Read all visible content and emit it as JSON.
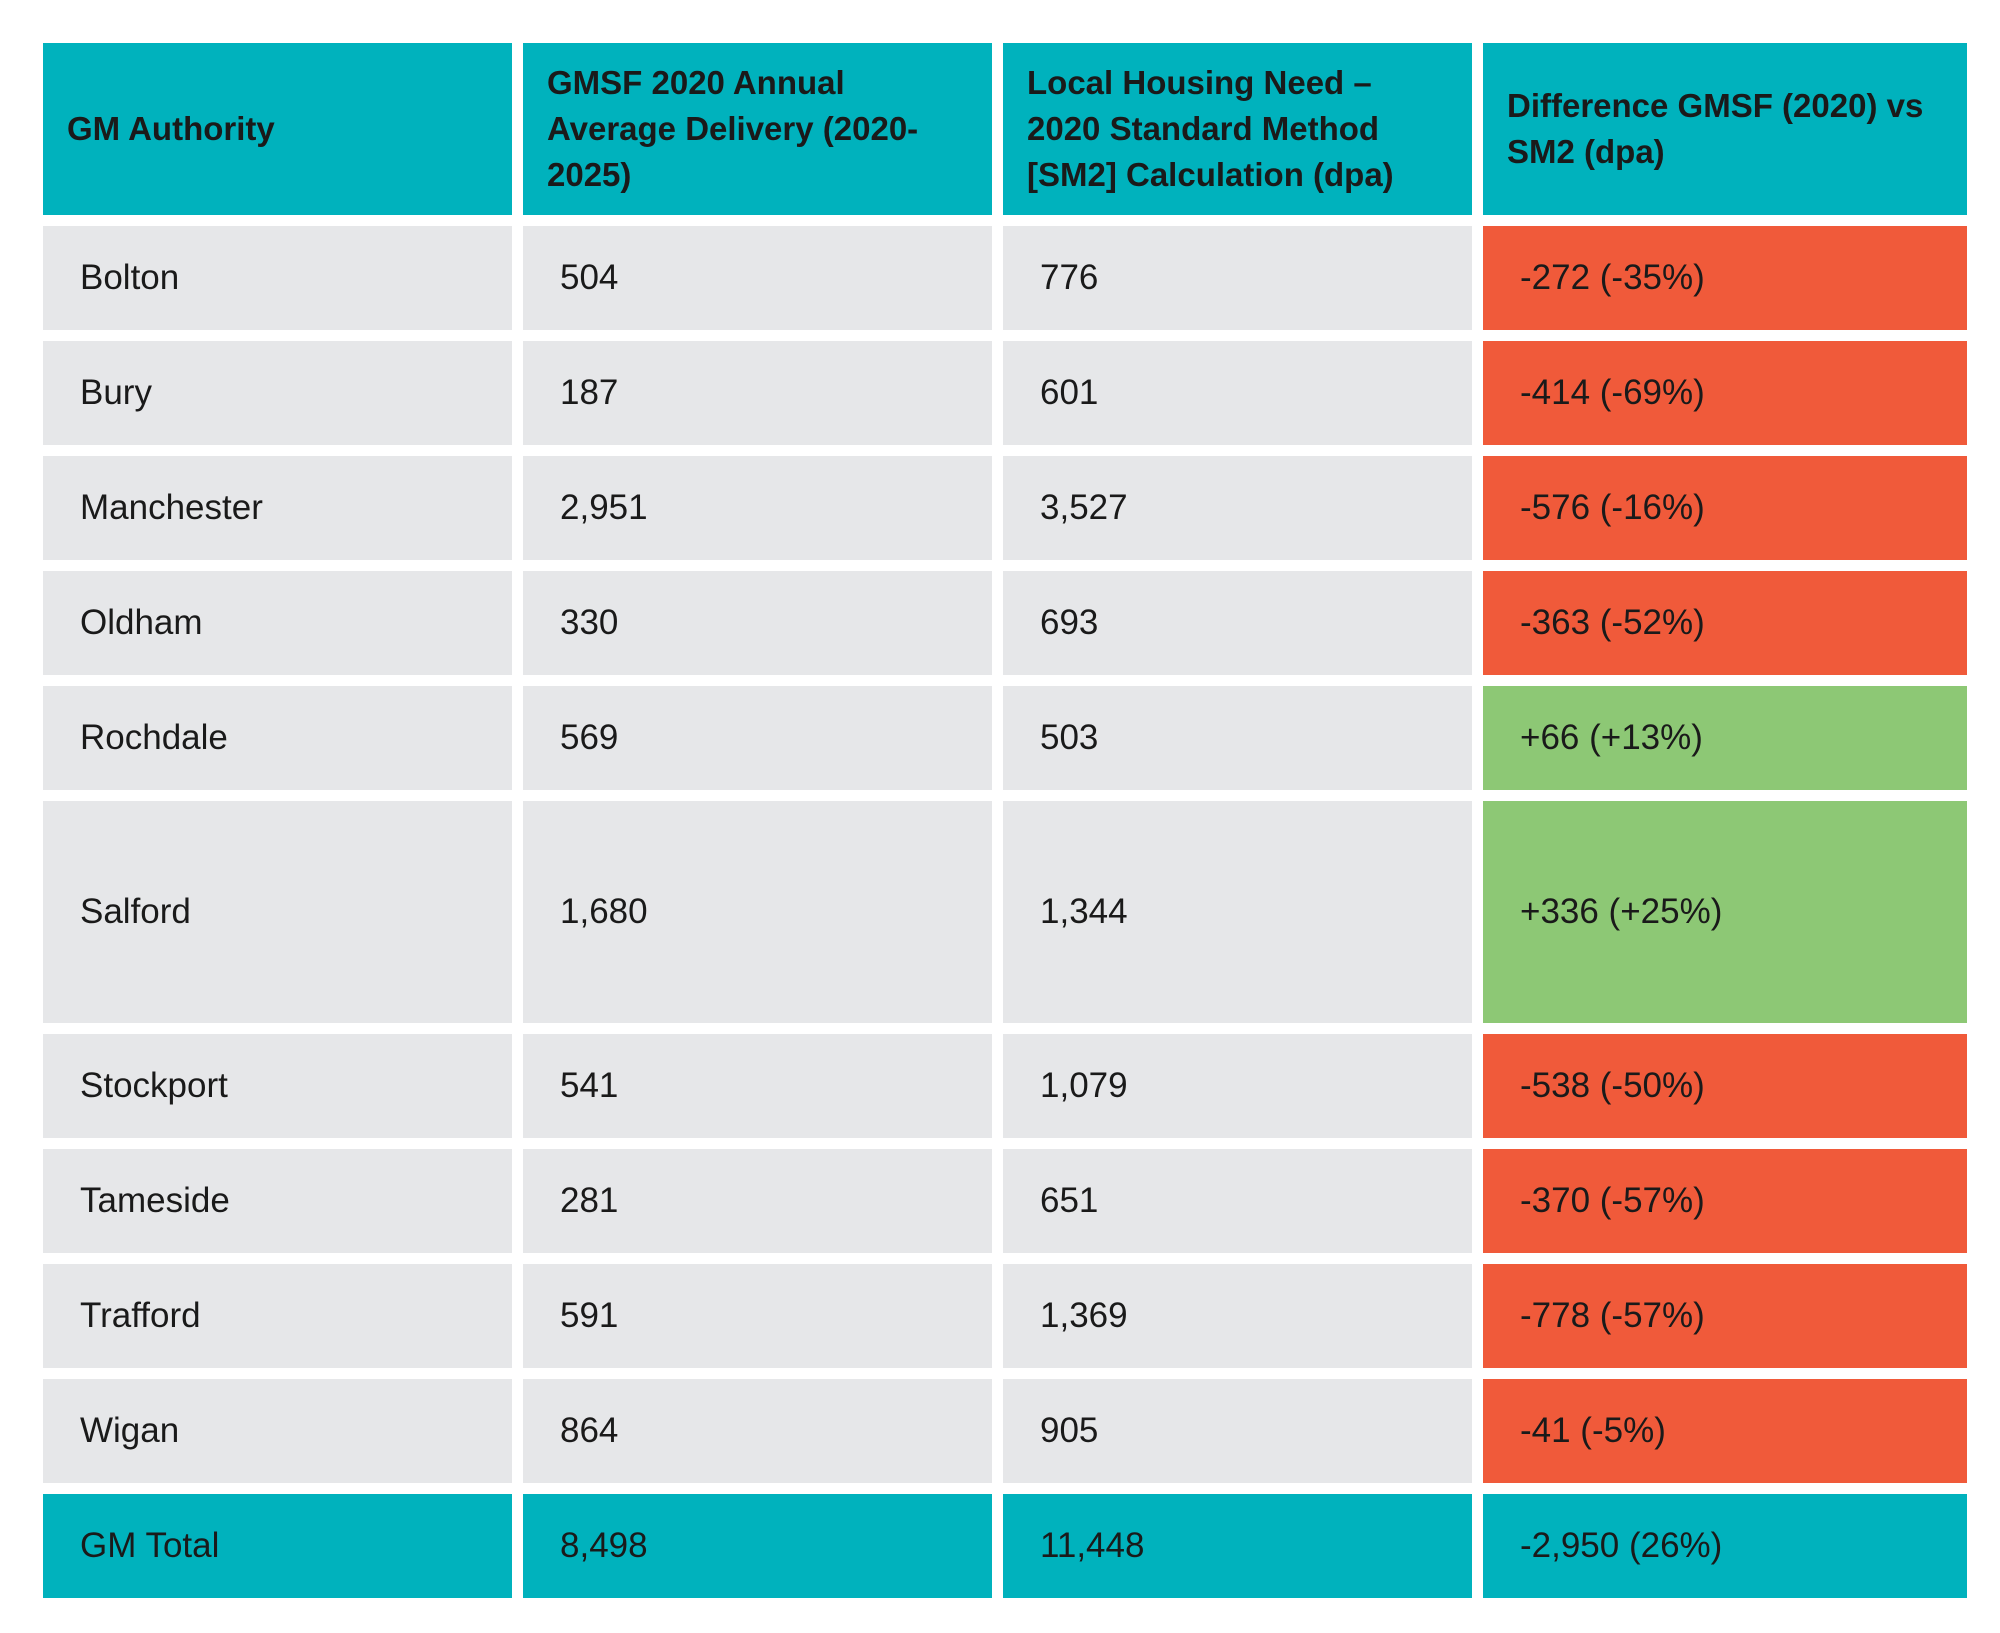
{
  "colors": {
    "header_bg": "#00b2bd",
    "row_bg": "#e6e7e9",
    "negative_bg": "#f05a3a",
    "positive_bg": "#8dc875",
    "total_bg": "#00b2bd"
  },
  "headers": [
    "GM Authority",
    "GMSF 2020 Annual Average Delivery (2020-2025)",
    "Local Housing Need – 2020 Standard Method [SM2] Calculation (dpa)",
    "Difference GMSF (2020) vs SM2 (dpa)"
  ],
  "rows": [
    {
      "authority": "Bolton",
      "gmsf": "504",
      "lhn": "776",
      "difference": "-272 (-35%)",
      "status": "negative"
    },
    {
      "authority": "Bury",
      "gmsf": "187",
      "lhn": "601",
      "difference": "-414 (-69%)",
      "status": "negative"
    },
    {
      "authority": "Manchester",
      "gmsf": "2,951",
      "lhn": "3,527",
      "difference": "-576 (-16%)",
      "status": "negative"
    },
    {
      "authority": "Oldham",
      "gmsf": "330",
      "lhn": "693",
      "difference": "-363 (-52%)",
      "status": "negative"
    },
    {
      "authority": "Rochdale",
      "gmsf": "569",
      "lhn": "503",
      "difference": "+66 (+13%)",
      "status": "positive"
    },
    {
      "authority": "Salford",
      "gmsf": "1,680",
      "lhn": "1,344",
      "difference": "+336 (+25%)",
      "status": "positive"
    },
    {
      "authority": "Stockport",
      "gmsf": "541",
      "lhn": "1,079",
      "difference": "-538 (-50%)",
      "status": "negative"
    },
    {
      "authority": "Tameside",
      "gmsf": "281",
      "lhn": "651",
      "difference": "-370 (-57%)",
      "status": "negative"
    },
    {
      "authority": "Trafford",
      "gmsf": "591",
      "lhn": "1,369",
      "difference": "-778 (-57%)",
      "status": "negative"
    },
    {
      "authority": "Wigan",
      "gmsf": "864",
      "lhn": "905",
      "difference": "-41 (-5%)",
      "status": "negative"
    }
  ],
  "total": {
    "authority": "GM Total",
    "gmsf": "8,498",
    "lhn": "11,448",
    "difference": "-2,950 (26%)"
  }
}
